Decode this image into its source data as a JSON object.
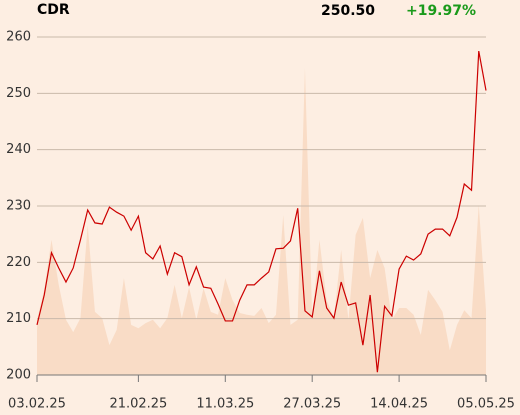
{
  "chart_data": {
    "type": "line",
    "title": "CDR",
    "last_value_label": "250.50",
    "change_label": "+19.97%",
    "categories": [
      "03.02.25",
      null,
      null,
      null,
      null,
      null,
      null,
      null,
      null,
      null,
      null,
      null,
      null,
      null,
      "21.02.25",
      null,
      null,
      null,
      null,
      null,
      null,
      null,
      null,
      null,
      null,
      null,
      "11.03.25",
      null,
      null,
      null,
      null,
      null,
      null,
      null,
      null,
      null,
      null,
      null,
      "27.03.25",
      null,
      null,
      null,
      null,
      null,
      null,
      null,
      null,
      null,
      null,
      null,
      "14.04.25",
      null,
      null,
      null,
      null,
      null,
      null,
      null,
      null,
      null,
      null,
      null,
      "05.05.25"
    ],
    "series": [
      {
        "type": "area",
        "color": "#f9dcc6",
        "values": [
          209.8,
          215.1,
          224,
          216,
          209.8,
          207.6,
          210.1,
          226.6,
          211.2,
          210.1,
          205.3,
          208,
          217.2,
          208.9,
          208.3,
          209.2,
          209.8,
          208.3,
          210.1,
          216,
          210.1,
          215.6,
          209.8,
          215.4,
          211.2,
          210.7,
          217.2,
          213.3,
          211,
          210.7,
          210.5,
          211.9,
          209.2,
          210.7,
          228.4,
          208.9,
          209.8,
          254.5,
          210.1,
          224,
          213.3,
          210.1,
          222.2,
          209.8,
          224.9,
          227.9,
          217.2,
          222.2,
          219,
          209.8,
          211.9,
          211.9,
          210.7,
          207.1,
          215.1,
          213.3,
          211.2,
          204.4,
          208.9,
          211.5,
          210.1,
          230.2,
          211.5
        ]
      },
      {
        "type": "line",
        "color": "#cc0000",
        "values": [
          208.9,
          214.2,
          221.7,
          219,
          216.5,
          219,
          224,
          229.3,
          227,
          226.8,
          229.8,
          228.9,
          228.2,
          225.7,
          228.2,
          221.7,
          220.6,
          222.9,
          217.9,
          221.7,
          221,
          216,
          219.2,
          215.6,
          215.4,
          212.6,
          209.6,
          209.6,
          213.3,
          216,
          216,
          217.2,
          218.3,
          222.4,
          222.5,
          223.8,
          229.6,
          211.4,
          210.3,
          218.5,
          211.9,
          210.1,
          216.5,
          212.4,
          212.8,
          205.3,
          214.2,
          200.5,
          212.2,
          210.5,
          218.8,
          221.1,
          220.4,
          221.5,
          225,
          225.9,
          225.9,
          224.7,
          228,
          233.9,
          232.8,
          257.5,
          250.5
        ]
      }
    ],
    "ylim": [
      200,
      260
    ],
    "yticks": [
      200,
      210,
      220,
      230,
      240,
      250,
      260
    ],
    "grid": true,
    "change_color": "#1a9a1a"
  }
}
